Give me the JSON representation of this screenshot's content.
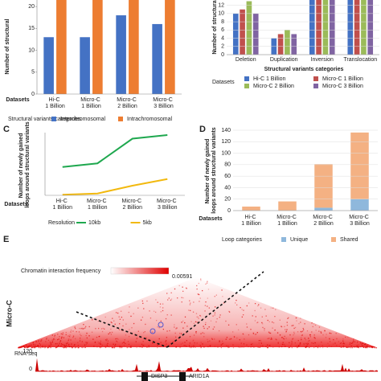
{
  "chart_data": [
    {
      "type": "bar",
      "ylabel": "Number of structural",
      "xlabel": "Datasets",
      "legend_title": "Structural variants categories",
      "categories": [
        "Hi-C 1 Billion",
        "Micro-C 1 Billion",
        "Micro-C 2 Billion",
        "Micro-C 3 Billion"
      ],
      "series": [
        {
          "name": "Interchromosomal",
          "color": "#4472c4",
          "values": [
            13,
            13,
            18,
            16
          ]
        },
        {
          "name": "Intrachromosomal",
          "color": "#ed7d31",
          "values": [
            22,
            22,
            22,
            22
          ]
        }
      ],
      "ylim": [
        0,
        21.5
      ],
      "yticks": [
        0,
        5,
        10,
        15,
        20
      ],
      "grid": false
    },
    {
      "type": "bar",
      "ylabel": "Number of structura",
      "xlabel": "Structural variants categories",
      "legend_title": "Datasets",
      "categories": [
        "Deletion",
        "Duplication",
        "Inversion",
        "Translocation"
      ],
      "series": [
        {
          "name": "Hi-C 1 Billion",
          "color": "#4472c4",
          "values": [
            10,
            4,
            14,
            14
          ]
        },
        {
          "name": "Micro-C 1 Billion",
          "color": "#c0504d",
          "values": [
            11,
            5,
            14,
            14
          ]
        },
        {
          "name": "Micro-C 2 Billion",
          "color": "#9bbb59",
          "values": [
            13,
            6,
            14,
            14
          ]
        },
        {
          "name": "Micro-C 3 Billion",
          "color": "#8064a2",
          "values": [
            10,
            5,
            14,
            14
          ]
        }
      ],
      "ylim": [
        0,
        13.3
      ],
      "yticks": [
        0,
        2,
        4,
        6,
        8,
        10,
        12
      ],
      "grid": true
    },
    {
      "type": "line",
      "panel": "C",
      "ylabel": "Number of newly gained loops around structural variants",
      "xlabel": "Datasets",
      "legend_title": "Resolution",
      "categories": [
        "Hi-C 1 Billion",
        "Micro-C 1 Billion",
        "Micro-C 2 Billion",
        "Micro-C 3 Billion"
      ],
      "series": [
        {
          "name": "10kb",
          "color": "#1fa84f",
          "values": [
            235,
            265,
            470,
            500
          ]
        },
        {
          "name": "5kb",
          "color": "#f2b90f",
          "values": [
            5,
            15,
            80,
            135
          ]
        }
      ],
      "ylim": [
        0,
        520
      ]
    },
    {
      "type": "stacked_bar",
      "panel": "D",
      "ylabel": "Number of newly gained loops around structural variants",
      "xlabel": "Datasets",
      "legend_title": "Loop categories",
      "categories": [
        "Hi-C 1 Billion",
        "Micro-C 1 Billion",
        "Micro-C 2 Billion",
        "Micro-C 3 Billion"
      ],
      "series": [
        {
          "name": "Unique",
          "color": "#8fb8dc",
          "values": [
            0,
            0,
            5,
            20
          ]
        },
        {
          "name": "Shared",
          "color": "#f4b183",
          "values": [
            7,
            16,
            76,
            116
          ]
        }
      ],
      "ylim": [
        0,
        140
      ],
      "yticks": [
        0,
        20,
        40,
        60,
        80,
        100,
        120,
        140
      ],
      "grid": true
    }
  ],
  "panel_e": {
    "letter": "E",
    "colorbar_label": "Chromatin interaction frequency",
    "colorbar_max": "0.00591",
    "track_label": "Micro-C",
    "rnaseq_label": "RNA-seq",
    "rnaseq_max": "120",
    "rnaseq_min": "0",
    "genes": [
      "DISP3",
      "ARID1A"
    ]
  }
}
